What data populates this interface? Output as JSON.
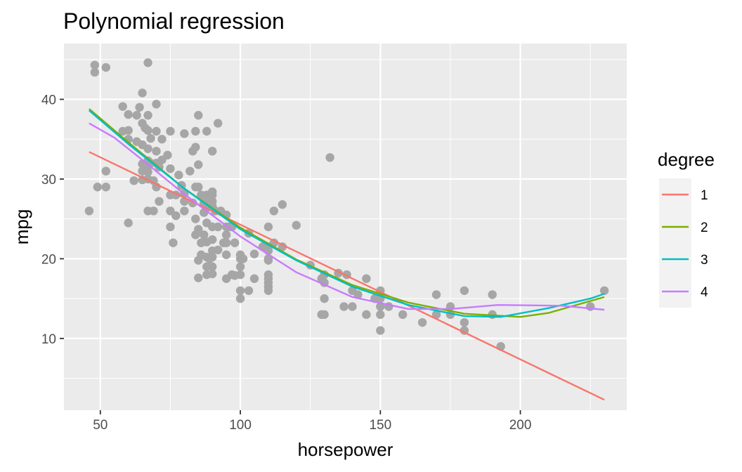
{
  "chart_data": {
    "type": "scatter",
    "title": "Polynomial regression",
    "xlabel": "horsepower",
    "ylabel": "mpg",
    "xlim": [
      37,
      238
    ],
    "ylim": [
      1,
      47
    ],
    "x_ticks": [
      50,
      100,
      150,
      200
    ],
    "y_ticks": [
      10,
      20,
      30,
      40
    ],
    "grid": true,
    "legend_position": "right",
    "legend_title": "degree",
    "point_color": "#a6a6a6",
    "panel_background": "#ebebeb",
    "points": [
      [
        46,
        26
      ],
      [
        48,
        44.3
      ],
      [
        48,
        43.4
      ],
      [
        49,
        29
      ],
      [
        52,
        44
      ],
      [
        52,
        31
      ],
      [
        52,
        29
      ],
      [
        58,
        39.1
      ],
      [
        58,
        36
      ],
      [
        60,
        38.1
      ],
      [
        60,
        36.1
      ],
      [
        60,
        35
      ],
      [
        60,
        24.5
      ],
      [
        62,
        29.8
      ],
      [
        63,
        38
      ],
      [
        63,
        34.7
      ],
      [
        64,
        39
      ],
      [
        65,
        40.8
      ],
      [
        65,
        37
      ],
      [
        65,
        34.3
      ],
      [
        65,
        31.9
      ],
      [
        65,
        31
      ],
      [
        65,
        29.9
      ],
      [
        66,
        36.4
      ],
      [
        67,
        44.6
      ],
      [
        67,
        38
      ],
      [
        67,
        36.1
      ],
      [
        67,
        33.8
      ],
      [
        67,
        32.3
      ],
      [
        67,
        31.6
      ],
      [
        67,
        30.9
      ],
      [
        67,
        30
      ],
      [
        67,
        26
      ],
      [
        68,
        35.1
      ],
      [
        68,
        32
      ],
      [
        69,
        29.8
      ],
      [
        69,
        26
      ],
      [
        70,
        39.4
      ],
      [
        70,
        36
      ],
      [
        70,
        33.5
      ],
      [
        70,
        32
      ],
      [
        70,
        29
      ],
      [
        71,
        31.5
      ],
      [
        71,
        27.2
      ],
      [
        72,
        35
      ],
      [
        72,
        32.4
      ],
      [
        74,
        33
      ],
      [
        75,
        36
      ],
      [
        75,
        31.3
      ],
      [
        75,
        28
      ],
      [
        75,
        26
      ],
      [
        75,
        24
      ],
      [
        76,
        22
      ],
      [
        77,
        28
      ],
      [
        77,
        25.4
      ],
      [
        78,
        30.5
      ],
      [
        79,
        29.2
      ],
      [
        80,
        35.7
      ],
      [
        80,
        28.2
      ],
      [
        80,
        27.2
      ],
      [
        80,
        26
      ],
      [
        82,
        31
      ],
      [
        83,
        33.5
      ],
      [
        83,
        27
      ],
      [
        84,
        36
      ],
      [
        84,
        34
      ],
      [
        84,
        29
      ],
      [
        84,
        25
      ],
      [
        84,
        23
      ],
      [
        85,
        38
      ],
      [
        85,
        31.8
      ],
      [
        85,
        29
      ],
      [
        85,
        23.7
      ],
      [
        85,
        19.8
      ],
      [
        85,
        17.6
      ],
      [
        86,
        28
      ],
      [
        86,
        22
      ],
      [
        86,
        20.5
      ],
      [
        87,
        27
      ],
      [
        87,
        25.8
      ],
      [
        87,
        23
      ],
      [
        88,
        36
      ],
      [
        88,
        28
      ],
      [
        88,
        26.4
      ],
      [
        88,
        24.5
      ],
      [
        88,
        22.1
      ],
      [
        88,
        20.2
      ],
      [
        88,
        19
      ],
      [
        88,
        18
      ],
      [
        89,
        27.5
      ],
      [
        89,
        20
      ],
      [
        90,
        33.5
      ],
      [
        90,
        28.4
      ],
      [
        90,
        28
      ],
      [
        90,
        27.2
      ],
      [
        90,
        26.6
      ],
      [
        90,
        24
      ],
      [
        90,
        22.4
      ],
      [
        90,
        21
      ],
      [
        90,
        20.2
      ],
      [
        90,
        19
      ],
      [
        90,
        18.1
      ],
      [
        91,
        26
      ],
      [
        92,
        37
      ],
      [
        92,
        24
      ],
      [
        92,
        21.1
      ],
      [
        93,
        26
      ],
      [
        94,
        22
      ],
      [
        95,
        25.5
      ],
      [
        95,
        24
      ],
      [
        95,
        22
      ],
      [
        95,
        20.5
      ],
      [
        95,
        17.5
      ],
      [
        95,
        23
      ],
      [
        96,
        24
      ],
      [
        97,
        24
      ],
      [
        97,
        18
      ],
      [
        98,
        17.9
      ],
      [
        98,
        22
      ],
      [
        100,
        20.5
      ],
      [
        100,
        20
      ],
      [
        100,
        19
      ],
      [
        100,
        18
      ],
      [
        100,
        16
      ],
      [
        100,
        15
      ],
      [
        101,
        20
      ],
      [
        103,
        23.2
      ],
      [
        103,
        16
      ],
      [
        105,
        20.6
      ],
      [
        105,
        17.5
      ],
      [
        108,
        21.5
      ],
      [
        110,
        24
      ],
      [
        110,
        21.5
      ],
      [
        110,
        21
      ],
      [
        110,
        20
      ],
      [
        110,
        19.8
      ],
      [
        110,
        18
      ],
      [
        110,
        17.5
      ],
      [
        110,
        17
      ],
      [
        110,
        16.5
      ],
      [
        110,
        16
      ],
      [
        112,
        22
      ],
      [
        112,
        26
      ],
      [
        115,
        21.5
      ],
      [
        115,
        26.8
      ],
      [
        120,
        24.2
      ],
      [
        125,
        19.2
      ],
      [
        129,
        17.5
      ],
      [
        129,
        13
      ],
      [
        130,
        18
      ],
      [
        130,
        17
      ],
      [
        130,
        15
      ],
      [
        130,
        13
      ],
      [
        132,
        32.7
      ],
      [
        135,
        18.2
      ],
      [
        137,
        14
      ],
      [
        138,
        18
      ],
      [
        140,
        16
      ],
      [
        140,
        14
      ],
      [
        142,
        15.5
      ],
      [
        145,
        17.5
      ],
      [
        145,
        13
      ],
      [
        148,
        15
      ],
      [
        150,
        16
      ],
      [
        150,
        15
      ],
      [
        150,
        14
      ],
      [
        150,
        13
      ],
      [
        150,
        11
      ],
      [
        153,
        14
      ],
      [
        158,
        13
      ],
      [
        165,
        12
      ],
      [
        170,
        15.5
      ],
      [
        170,
        13
      ],
      [
        175,
        14
      ],
      [
        175,
        13
      ],
      [
        180,
        16
      ],
      [
        180,
        12
      ],
      [
        180,
        11
      ],
      [
        190,
        15.5
      ],
      [
        190,
        13
      ],
      [
        193,
        9
      ],
      [
        225,
        14
      ],
      [
        230,
        16
      ]
    ],
    "series": [
      {
        "name": "1",
        "color": "#f8766d",
        "points": [
          [
            46,
            33.4
          ],
          [
            230,
            2.3
          ]
        ]
      },
      {
        "name": "2",
        "color": "#7cae00",
        "points": [
          [
            46,
            38.8
          ],
          [
            60,
            34.6
          ],
          [
            80,
            28.8
          ],
          [
            100,
            23.9
          ],
          [
            120,
            19.9
          ],
          [
            140,
            16.7
          ],
          [
            160,
            14.5
          ],
          [
            180,
            13.1
          ],
          [
            200,
            12.7
          ],
          [
            210,
            13.2
          ],
          [
            230,
            15.2
          ]
        ]
      },
      {
        "name": "3",
        "color": "#00bfc4",
        "points": [
          [
            46,
            38.6
          ],
          [
            60,
            34.4
          ],
          [
            80,
            28.8
          ],
          [
            100,
            23.7
          ],
          [
            120,
            19.8
          ],
          [
            140,
            16.5
          ],
          [
            160,
            14.2
          ],
          [
            180,
            12.8
          ],
          [
            193,
            12.7
          ],
          [
            210,
            13.8
          ],
          [
            225,
            15
          ],
          [
            230,
            15.6
          ]
        ]
      },
      {
        "name": "4",
        "color": "#c77cff",
        "points": [
          [
            46,
            37
          ],
          [
            55,
            35.2
          ],
          [
            65,
            32.4
          ],
          [
            80,
            28.1
          ],
          [
            100,
            22.8
          ],
          [
            120,
            18.3
          ],
          [
            140,
            15.2
          ],
          [
            160,
            13.7
          ],
          [
            175,
            13.7
          ],
          [
            192,
            14.2
          ],
          [
            215,
            14.1
          ],
          [
            230,
            13.6
          ]
        ]
      }
    ]
  }
}
